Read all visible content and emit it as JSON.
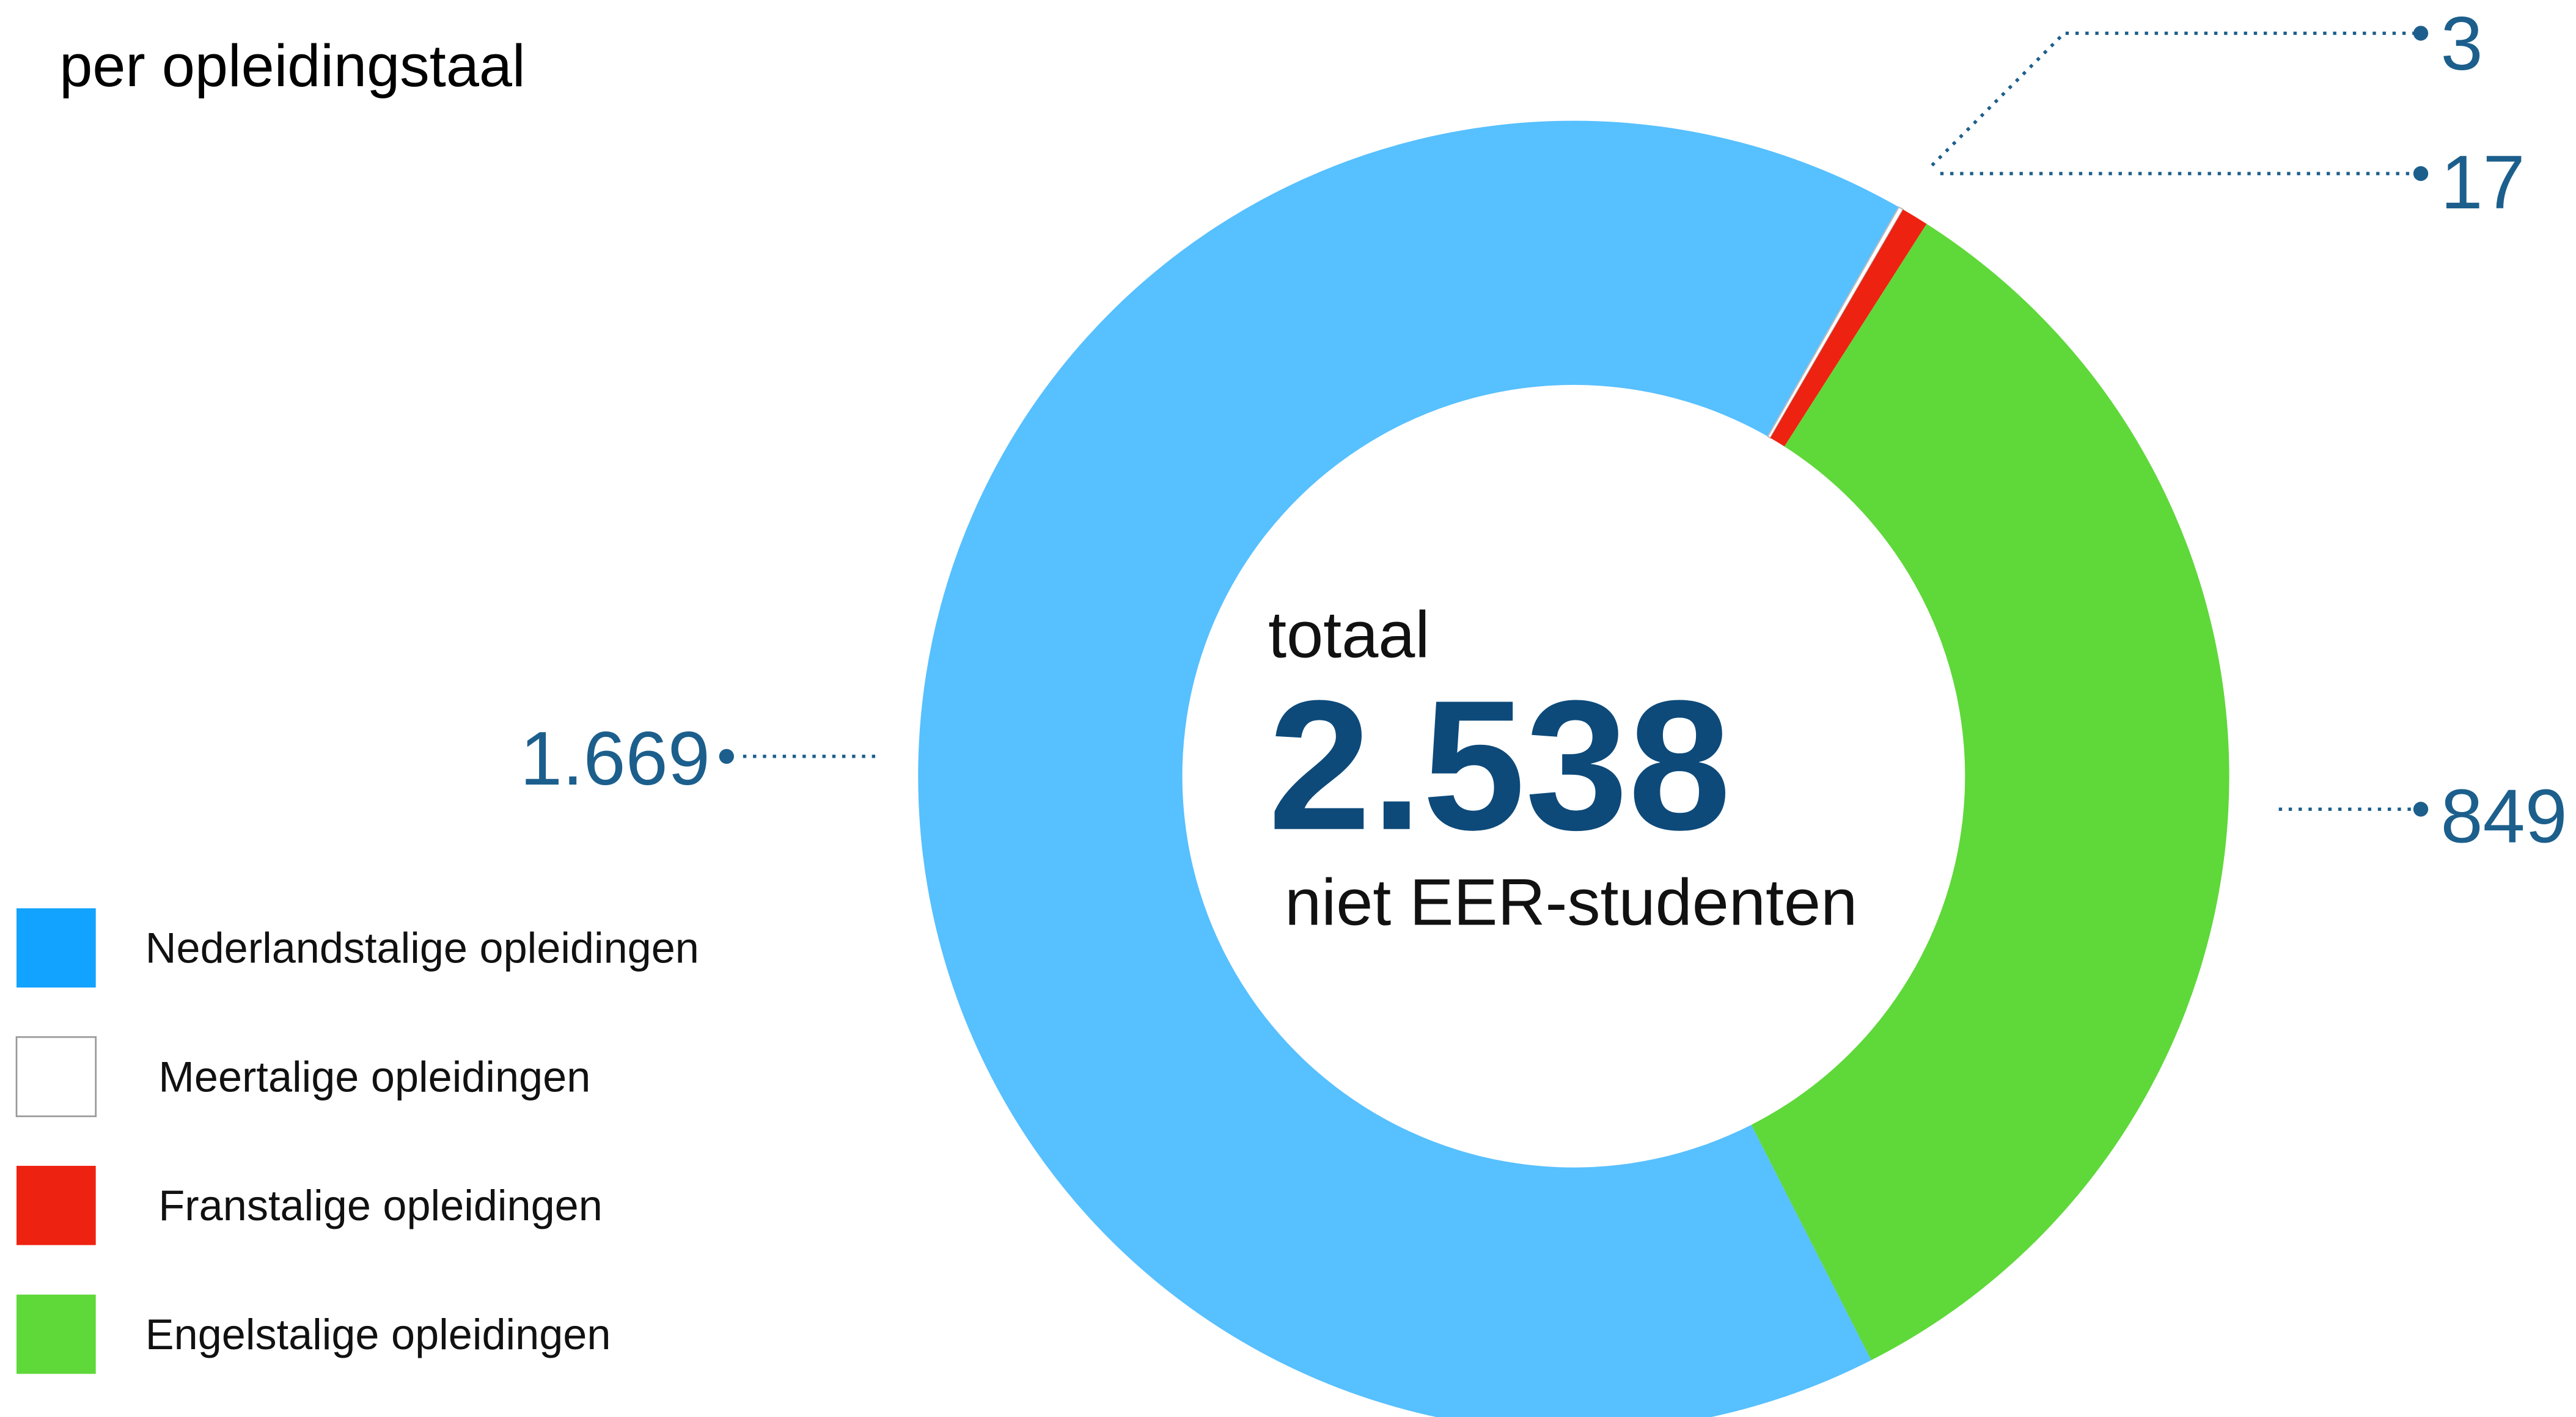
{
  "chart_data": {
    "type": "donut",
    "title": "per opleidingstaal",
    "categories": [
      "Nederlandstalige opleidingen",
      "Meertalige opleidingen",
      "Franstalige opleidingen",
      "Engelstalige opleidingen"
    ],
    "values": [
      1669,
      3,
      17,
      849
    ],
    "value_labels": [
      "1.669",
      "3",
      "17",
      "849"
    ],
    "colors": [
      "#57c0ff",
      "#ffffff",
      "#ee2211",
      "#5fd83a"
    ],
    "center_text": {
      "top": "totaal",
      "total": {
        "value": 2538,
        "label": "2.538"
      },
      "bottom": "niet EER-studenten"
    },
    "legend": "left"
  }
}
